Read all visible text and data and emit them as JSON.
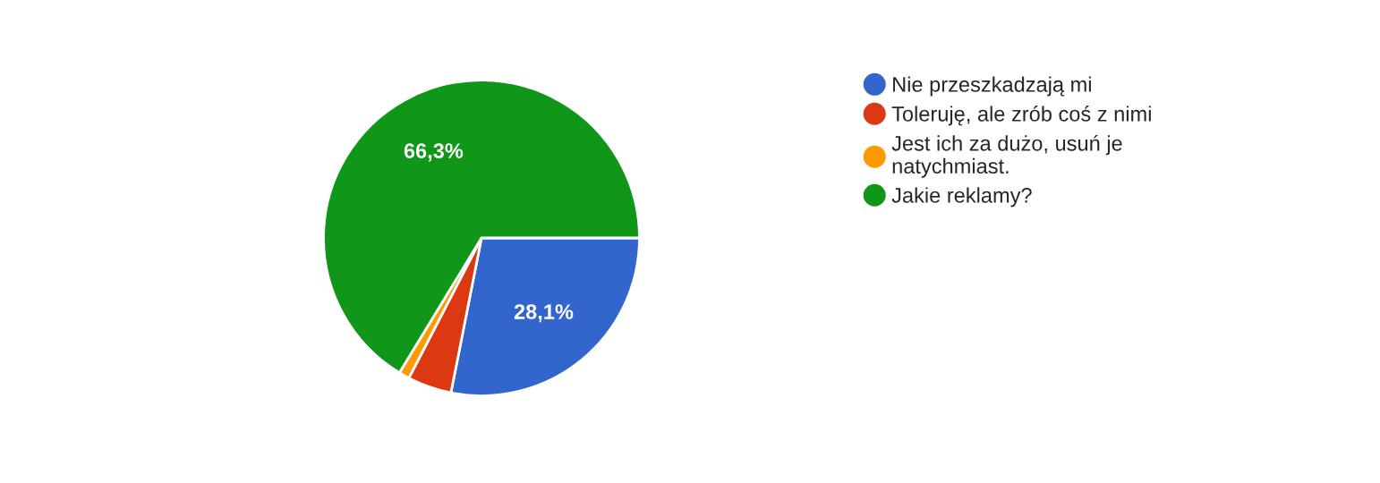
{
  "chart_data": {
    "type": "pie",
    "categories": [
      "Nie przeszkadzają mi",
      "Toleruję, ale zrób coś z nimi",
      "Jest ich za dużo, usuń je\nnatychmiast.",
      "Jakie reklamy?"
    ],
    "values": [
      28.1,
      4.5,
      1.1,
      66.3
    ],
    "colors": [
      "#3366cc",
      "#dc3912",
      "#ff9900",
      "#109618"
    ],
    "value_labels": [
      "28,1%",
      null,
      null,
      "66,3%"
    ],
    "legend": "right"
  }
}
